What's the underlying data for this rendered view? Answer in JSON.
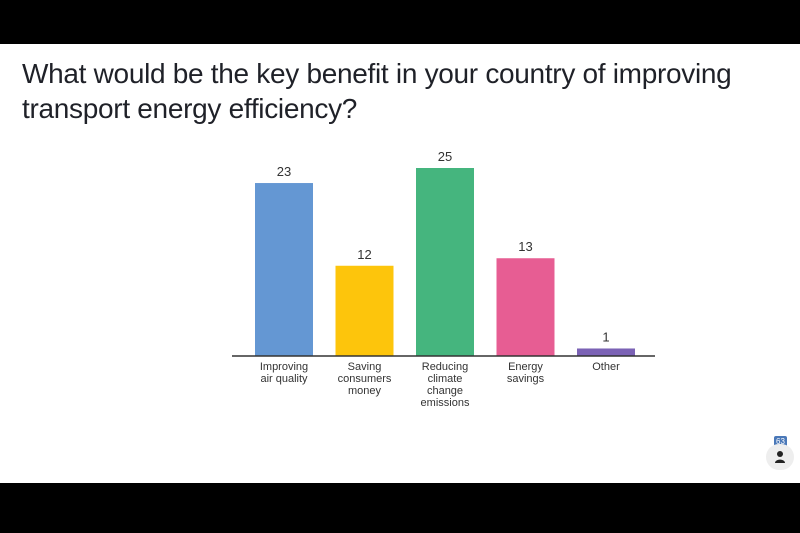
{
  "question": "What would be the key benefit in your country of improving transport energy efficiency?",
  "participants": {
    "count": "63",
    "icon": "person-icon"
  },
  "chart_data": {
    "type": "bar",
    "categories": [
      [
        "Improving",
        "air quality"
      ],
      [
        "Saving",
        "consumers",
        "money"
      ],
      [
        "Reducing",
        "climate",
        "change",
        "emissions"
      ],
      [
        "Energy",
        "savings"
      ],
      [
        "Other"
      ]
    ],
    "values": [
      23,
      12,
      25,
      13,
      1
    ],
    "colors": [
      "#6497d3",
      "#fdc50c",
      "#45b57e",
      "#e75d93",
      "#7b62b5"
    ],
    "title": "",
    "xlabel": "",
    "ylabel": "",
    "ylim": [
      0,
      25
    ],
    "grid": false,
    "legend": "none"
  }
}
